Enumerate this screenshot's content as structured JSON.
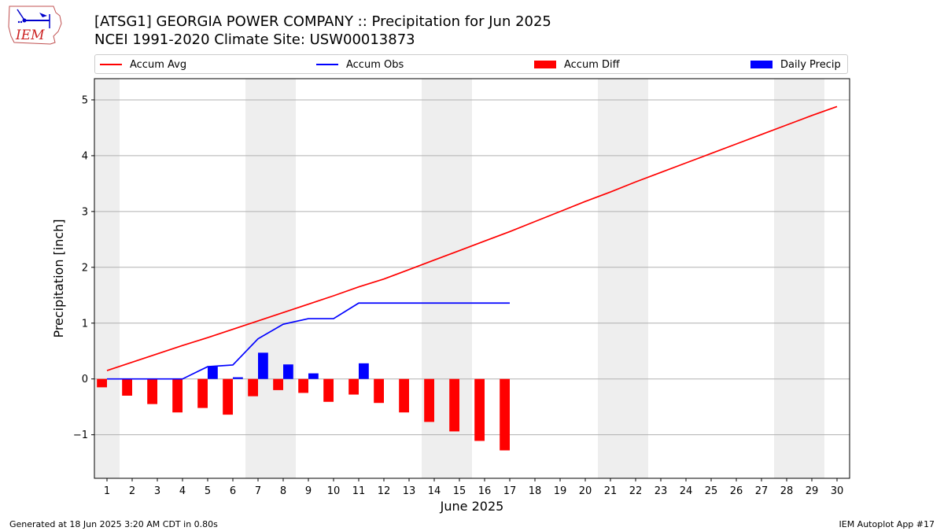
{
  "header": {
    "title_line1": "[ATSG1] GEORGIA POWER COMPANY :: Precipitation for Jun 2025",
    "title_line2": "NCEI 1991-2020 Climate Site: USW00013873",
    "logo_text": "IEM"
  },
  "legend": {
    "accum_avg": "Accum Avg",
    "accum_obs": "Accum Obs",
    "accum_diff": "Accum Diff",
    "daily_precip": "Daily Precip"
  },
  "footer": {
    "left": "Generated at 18 Jun 2025 3:20 AM CDT in 0.80s",
    "right": "IEM Autoplot App #17"
  },
  "colors": {
    "accum_avg": "#ff0000",
    "accum_obs": "#0000ff",
    "accum_diff": "#ff0000",
    "daily_precip": "#0000ff",
    "weekend_shade": "#eeeeee",
    "grid": "#b0b0b0"
  },
  "chart_data": {
    "type": "bar",
    "xlabel": "June 2025",
    "ylabel": "Precipitation [inch]",
    "ylim": [
      -1.78,
      5.38
    ],
    "xlim": [
      0.5,
      30.5
    ],
    "yticks": [
      -1,
      0,
      1,
      2,
      3,
      4,
      5
    ],
    "ytick_labels": [
      "−1",
      "0",
      "1",
      "2",
      "3",
      "4",
      "5"
    ],
    "x": [
      1,
      2,
      3,
      4,
      5,
      6,
      7,
      8,
      9,
      10,
      11,
      12,
      13,
      14,
      15,
      16,
      17,
      18,
      19,
      20,
      21,
      22,
      23,
      24,
      25,
      26,
      27,
      28,
      29,
      30
    ],
    "xtick_labels": [
      "1",
      "2",
      "3",
      "4",
      "5",
      "6",
      "7",
      "8",
      "9",
      "10",
      "11",
      "12",
      "13",
      "14",
      "15",
      "16",
      "17",
      "18",
      "19",
      "20",
      "21",
      "22",
      "23",
      "24",
      "25",
      "26",
      "27",
      "28",
      "29",
      "30"
    ],
    "weekend_days": [
      1,
      7,
      8,
      14,
      15,
      21,
      22,
      28,
      29
    ],
    "grid": "y",
    "legend_position": "top",
    "series": [
      {
        "name": "Accum Avg",
        "kind": "line",
        "x": [
          1,
          2,
          3,
          4,
          5,
          6,
          7,
          8,
          9,
          10,
          11,
          12,
          13,
          14,
          15,
          16,
          17,
          18,
          19,
          20,
          21,
          22,
          23,
          24,
          25,
          26,
          27,
          28,
          29,
          30
        ],
        "values": [
          0.15,
          0.3,
          0.45,
          0.6,
          0.74,
          0.89,
          1.04,
          1.19,
          1.34,
          1.49,
          1.65,
          1.79,
          1.96,
          2.13,
          2.3,
          2.47,
          2.64,
          2.82,
          3.0,
          3.18,
          3.35,
          3.53,
          3.7,
          3.87,
          4.04,
          4.21,
          4.38,
          4.55,
          4.72,
          4.88
        ]
      },
      {
        "name": "Accum Obs",
        "kind": "line",
        "x": [
          1,
          2,
          3,
          4,
          5,
          6,
          7,
          8,
          9,
          10,
          11,
          12,
          13,
          14,
          15,
          16,
          17
        ],
        "values": [
          0.0,
          0.0,
          0.0,
          0.0,
          0.22,
          0.25,
          0.72,
          0.98,
          1.08,
          1.08,
          1.36,
          1.36,
          1.36,
          1.36,
          1.36,
          1.36,
          1.36
        ]
      },
      {
        "name": "Accum Diff",
        "kind": "bar",
        "offset": -0.2,
        "x": [
          1,
          2,
          3,
          4,
          5,
          6,
          7,
          8,
          9,
          10,
          11,
          12,
          13,
          14,
          15,
          16,
          17
        ],
        "values": [
          -0.15,
          -0.3,
          -0.45,
          -0.6,
          -0.52,
          -0.64,
          -0.31,
          -0.2,
          -0.25,
          -0.41,
          -0.28,
          -0.43,
          -0.6,
          -0.77,
          -0.94,
          -1.11,
          -1.28
        ]
      },
      {
        "name": "Daily Precip",
        "kind": "bar",
        "offset": 0.2,
        "x": [
          5,
          6,
          7,
          8,
          9,
          11
        ],
        "values": [
          0.22,
          0.03,
          0.47,
          0.26,
          0.1,
          0.28
        ]
      }
    ]
  }
}
